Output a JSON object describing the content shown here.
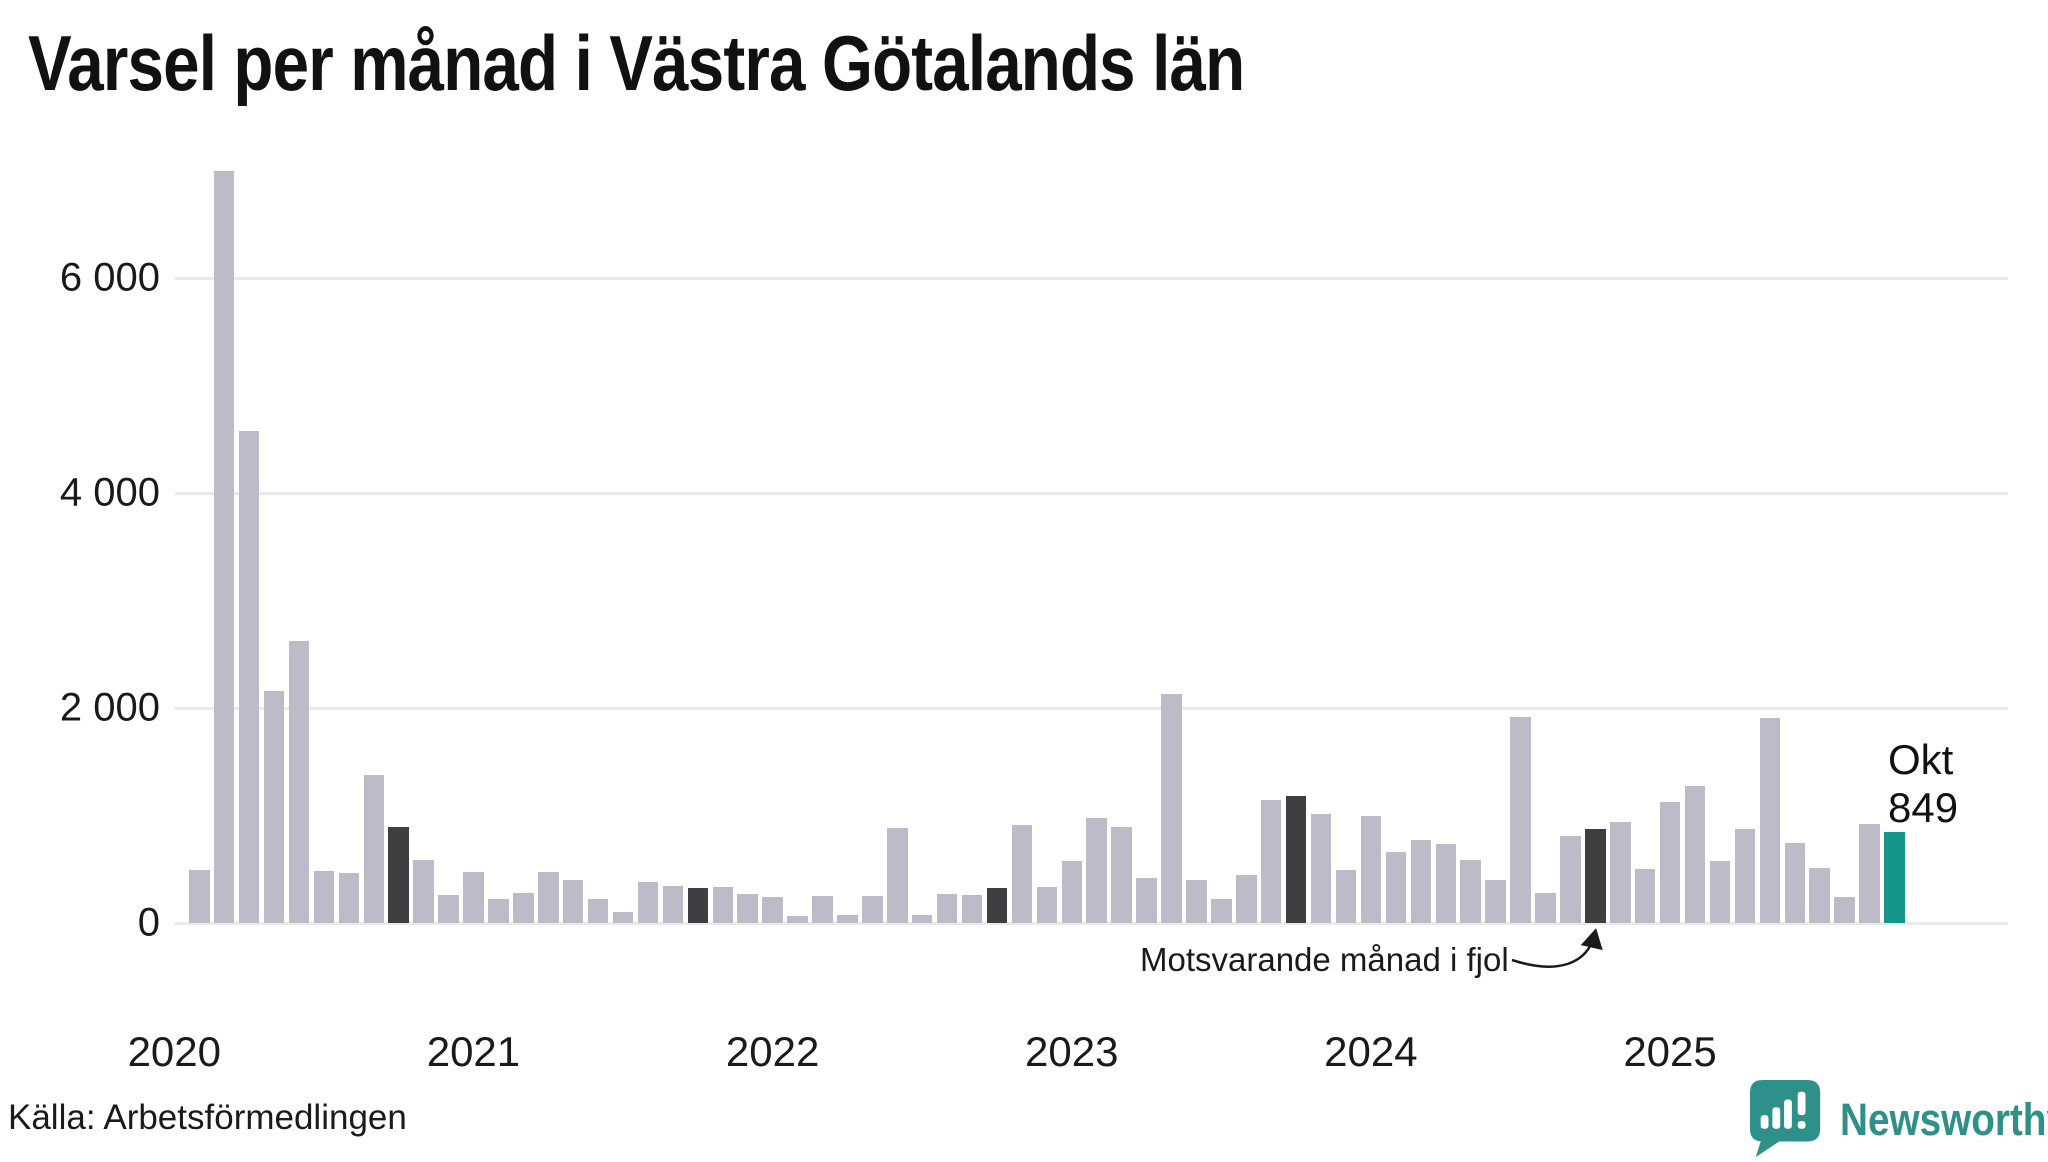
{
  "title": "Varsel per månad i Västra Götalands län",
  "source": "Källa: Arbetsförmedlingen",
  "annotation": {
    "text": "Motsvarande månad i fjol"
  },
  "highlight_label": {
    "month": "Okt",
    "value": "849"
  },
  "logo": {
    "brand": "Newsworthy"
  },
  "colors": {
    "bar": "#bebbc8",
    "last_year_bar": "#3f3e40",
    "current_bar": "#16968a",
    "grid": "#e9e9ee",
    "text": "#1a1a1a",
    "brand": "#2f9089"
  },
  "y_axis": {
    "ticks": [
      "0",
      "2 000",
      "4 000",
      "6 000"
    ],
    "tick_values": [
      0,
      2000,
      4000,
      6000
    ]
  },
  "x_axis": {
    "years": [
      "2020",
      "2021",
      "2022",
      "2023",
      "2024",
      "2025"
    ]
  },
  "chart_data": {
    "type": "bar",
    "title": "Varsel per månad i Västra Götalands län",
    "ylabel": "",
    "xlabel": "",
    "ylim": [
      0,
      7000
    ],
    "grid": "horizontal",
    "months": [
      "2020-02",
      "2020-03",
      "2020-04",
      "2020-05",
      "2020-06",
      "2020-07",
      "2020-08",
      "2020-09",
      "2020-10",
      "2020-11",
      "2020-12",
      "2021-01",
      "2021-02",
      "2021-03",
      "2021-04",
      "2021-05",
      "2021-06",
      "2021-07",
      "2021-08",
      "2021-09",
      "2021-10",
      "2021-11",
      "2021-12",
      "2022-01",
      "2022-02",
      "2022-03",
      "2022-04",
      "2022-05",
      "2022-06",
      "2022-07",
      "2022-08",
      "2022-09",
      "2022-10",
      "2022-11",
      "2022-12",
      "2023-01",
      "2023-02",
      "2023-03",
      "2023-04",
      "2023-05",
      "2023-06",
      "2023-07",
      "2023-08",
      "2023-09",
      "2023-10",
      "2023-11",
      "2023-12",
      "2024-01",
      "2024-02",
      "2024-03",
      "2024-04",
      "2024-05",
      "2024-06",
      "2024-07",
      "2024-08",
      "2024-09",
      "2024-10",
      "2024-11",
      "2024-12",
      "2025-01",
      "2025-02",
      "2025-03",
      "2025-04",
      "2025-05",
      "2025-06",
      "2025-07",
      "2025-08",
      "2025-09",
      "2025-10"
    ],
    "values": [
      493,
      7000,
      4580,
      2160,
      2620,
      485,
      465,
      1375,
      895,
      585,
      260,
      475,
      225,
      280,
      470,
      400,
      220,
      100,
      380,
      345,
      325,
      335,
      270,
      240,
      65,
      250,
      75,
      250,
      885,
      75,
      270,
      260,
      325,
      910,
      335,
      575,
      975,
      895,
      420,
      2130,
      400,
      225,
      445,
      1140,
      1180,
      1015,
      495,
      995,
      660,
      770,
      735,
      585,
      400,
      1915,
      280,
      810,
      875,
      940,
      500,
      1125,
      1275,
      575,
      875,
      1905,
      745,
      510,
      240,
      920,
      849
    ],
    "last_year_indices": [
      8,
      20,
      32,
      44,
      56
    ],
    "current_index": 68,
    "current_value_label": "Okt 849"
  }
}
